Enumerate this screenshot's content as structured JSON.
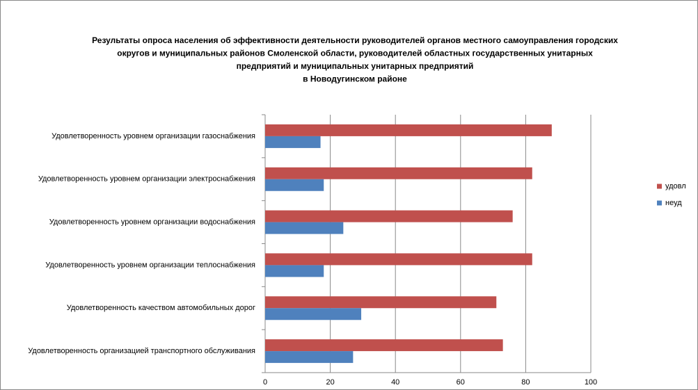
{
  "chart_data": {
    "type": "bar",
    "orientation": "horizontal",
    "title": [
      "Результаты опроса населения об эффективности деятельности руководителей органов местного самоуправления городских",
      "округов и муниципальных районов Смоленской области, руководителей областных государственных унитарных",
      "предприятий и муниципальных унитарных предприятий",
      "в Новодугинском районе"
    ],
    "categories": [
      "Удовлетворенность  уровнем  организации газоснабжения",
      "Удовлетворенность  уровнем организации электроснабжения",
      "Удовлетворенность  уровнем  организации водоснабжения",
      "Удовлетворенность  уровнем  организации теплоснабжения",
      "Удовлетворенность  качеством  автомобильных дорог",
      "Удовлетворенность  организацией  транспортного обслуживания"
    ],
    "series": [
      {
        "name": "удовл",
        "color": "#c0504d",
        "values": [
          88,
          82,
          76,
          82,
          71,
          73
        ]
      },
      {
        "name": "неуд",
        "color": "#4f81bd",
        "values": [
          17,
          18,
          24,
          18,
          29.5,
          27
        ]
      }
    ],
    "xlim": [
      0,
      100
    ],
    "xticks": [
      0,
      20,
      40,
      60,
      80,
      100
    ],
    "grid": true,
    "legend": "right"
  }
}
